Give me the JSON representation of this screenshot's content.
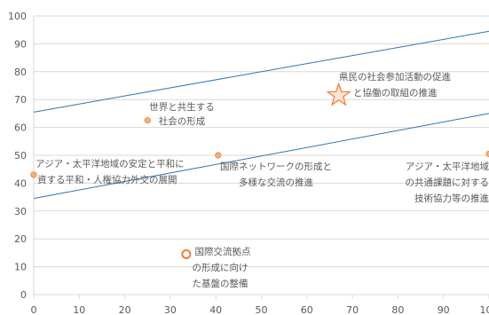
{
  "chart_data": {
    "type": "scatter",
    "xlim": [
      0,
      100
    ],
    "ylim": [
      0,
      100
    ],
    "x_ticks": [
      0,
      10,
      20,
      30,
      40,
      50,
      60,
      70,
      80,
      90,
      100
    ],
    "y_ticks": [
      0,
      10,
      20,
      30,
      40,
      50,
      60,
      70,
      80,
      90,
      100
    ],
    "grid": "horizontal",
    "colors": {
      "point_fill": "#f4b183",
      "point_stroke": "#ed7d31",
      "line": "#2e75b6",
      "axis": "#d9d9d9",
      "text": "#595959"
    },
    "points": [
      {
        "id": "p1",
        "x": 0,
        "y": 43,
        "marker": "dot",
        "label": [
          "アジア・太平洋地域の安定と平和に",
          "資する平和・人権協力外交の展開"
        ]
      },
      {
        "id": "p2",
        "x": 25,
        "y": 62.5,
        "marker": "dot",
        "label": [
          "世界と共生する",
          "社会の形成"
        ]
      },
      {
        "id": "p3",
        "x": 40.5,
        "y": 50,
        "marker": "dot",
        "label": [
          "国際ネットワークの形成と",
          "多様な交流の推進"
        ]
      },
      {
        "id": "p4",
        "x": 33.5,
        "y": 14.5,
        "marker": "ring",
        "label": [
          "国際交流拠点",
          "の形成に向け",
          "た基盤の整備"
        ]
      },
      {
        "id": "p5",
        "x": 67,
        "y": 71.5,
        "marker": "star",
        "label": [
          "県民の社会参加活動の促進",
          "と協働の取組の推進"
        ]
      },
      {
        "id": "p6",
        "x": 100,
        "y": 50.5,
        "marker": "dot",
        "label": [
          "アジア・太平洋地域",
          "の共通課題に対する",
          "技術協力等の推進"
        ]
      }
    ],
    "lines": [
      {
        "id": "upper",
        "x": [
          0,
          100
        ],
        "y": [
          65.5,
          94.5
        ]
      },
      {
        "id": "lower",
        "x": [
          0,
          100
        ],
        "y": [
          34.5,
          65
        ]
      }
    ]
  }
}
